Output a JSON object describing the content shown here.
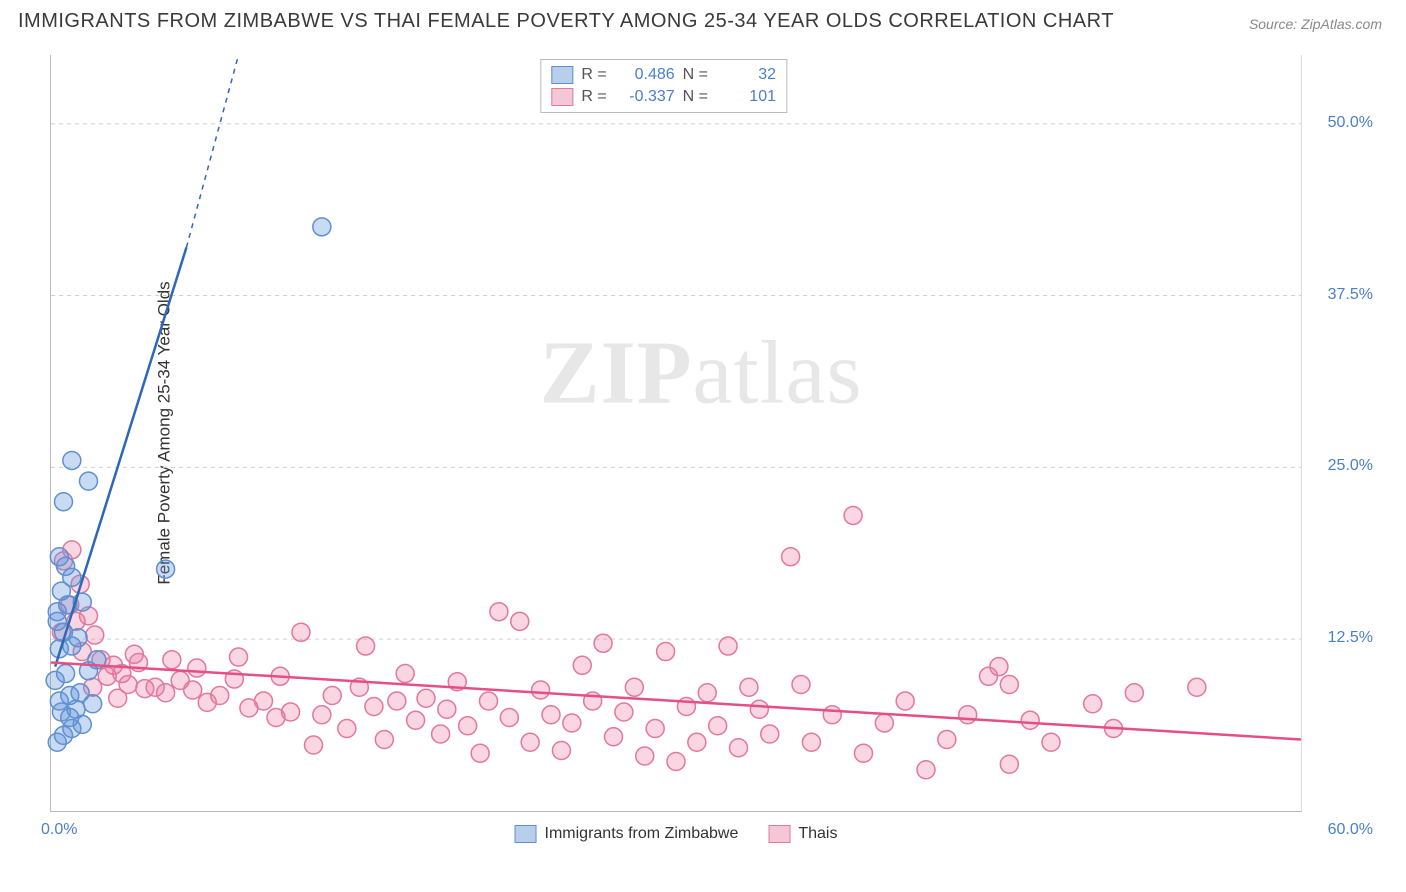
{
  "title": "IMMIGRANTS FROM ZIMBABWE VS THAI FEMALE POVERTY AMONG 25-34 YEAR OLDS CORRELATION CHART",
  "source_label": "Source: ZipAtlas.com",
  "y_axis_label": "Female Poverty Among 25-34 Year Olds",
  "watermark_a": "ZIP",
  "watermark_b": "atlas",
  "chart": {
    "type": "scatter",
    "xlim": [
      0,
      60
    ],
    "ylim": [
      0,
      55
    ],
    "x_min_label": "0.0%",
    "x_max_label": "60.0%",
    "y_ticks": [
      12.5,
      25.0,
      37.5,
      50.0
    ],
    "y_tick_labels": [
      "12.5%",
      "25.0%",
      "37.5%",
      "50.0%"
    ],
    "grid_color": "#d0d0d0",
    "background_color": "#ffffff",
    "marker_radius": 9,
    "marker_stroke_width": 1.5,
    "series": [
      {
        "id": "zimbabwe",
        "label": "Immigrants from Zimbabwe",
        "legend_label": "Immigrants from Zimbabwe",
        "r_label": "R =",
        "r_value": "0.486",
        "n_label": "N =",
        "n_value": "32",
        "fill": "rgba(100,150,220,0.35)",
        "stroke": "#5e90cf",
        "swatch_fill": "#b8cfec",
        "swatch_border": "#5e90cf",
        "regression": {
          "from_x": 0.2,
          "from_y": 10.5,
          "to_x": 9.0,
          "to_y": 55.0,
          "color": "#2f67b8",
          "width": 2.5,
          "dash_from_x": 6.5,
          "dash_from_y": 41.0
        },
        "points": [
          [
            0.3,
            5.0
          ],
          [
            0.6,
            5.5
          ],
          [
            1.0,
            6.0
          ],
          [
            1.5,
            6.3
          ],
          [
            0.5,
            7.2
          ],
          [
            1.2,
            7.4
          ],
          [
            2.0,
            7.8
          ],
          [
            0.4,
            8.0
          ],
          [
            0.9,
            8.4
          ],
          [
            1.4,
            8.6
          ],
          [
            0.2,
            9.5
          ],
          [
            0.7,
            10.0
          ],
          [
            1.8,
            10.2
          ],
          [
            0.4,
            11.8
          ],
          [
            1.0,
            12.0
          ],
          [
            0.6,
            13.0
          ],
          [
            1.3,
            12.6
          ],
          [
            0.3,
            14.5
          ],
          [
            0.8,
            15.0
          ],
          [
            1.5,
            15.2
          ],
          [
            0.5,
            16.0
          ],
          [
            1.0,
            17.0
          ],
          [
            0.7,
            17.8
          ],
          [
            0.4,
            18.5
          ],
          [
            5.5,
            17.6
          ],
          [
            0.6,
            22.5
          ],
          [
            1.8,
            24.0
          ],
          [
            1.0,
            25.5
          ],
          [
            13.0,
            42.5
          ],
          [
            0.3,
            13.8
          ],
          [
            2.2,
            11.0
          ],
          [
            0.9,
            6.8
          ]
        ]
      },
      {
        "id": "thais",
        "label": "Thais",
        "legend_label": "Thais",
        "r_label": "R =",
        "r_value": "-0.337",
        "n_label": "N =",
        "n_value": "101",
        "fill": "rgba(235,120,160,0.30)",
        "stroke": "#e2789f",
        "swatch_fill": "#f5c6d6",
        "swatch_border": "#e2789f",
        "regression": {
          "from_x": 0.0,
          "from_y": 10.8,
          "to_x": 60.0,
          "to_y": 5.2,
          "color": "#e54e86",
          "width": 2.5
        },
        "points": [
          [
            1.0,
            19.0
          ],
          [
            0.6,
            18.2
          ],
          [
            1.4,
            16.5
          ],
          [
            0.9,
            15.0
          ],
          [
            1.2,
            13.8
          ],
          [
            0.5,
            13.0
          ],
          [
            1.8,
            14.2
          ],
          [
            2.1,
            12.8
          ],
          [
            1.5,
            11.6
          ],
          [
            2.4,
            11.0
          ],
          [
            3.0,
            10.6
          ],
          [
            2.7,
            9.8
          ],
          [
            3.4,
            10.0
          ],
          [
            4.0,
            11.4
          ],
          [
            3.7,
            9.2
          ],
          [
            4.5,
            8.9
          ],
          [
            5.0,
            9.0
          ],
          [
            4.2,
            10.8
          ],
          [
            5.5,
            8.6
          ],
          [
            6.2,
            9.5
          ],
          [
            6.8,
            8.8
          ],
          [
            7.0,
            10.4
          ],
          [
            7.5,
            7.9
          ],
          [
            8.1,
            8.4
          ],
          [
            8.8,
            9.6
          ],
          [
            9.0,
            11.2
          ],
          [
            9.5,
            7.5
          ],
          [
            10.2,
            8.0
          ],
          [
            10.8,
            6.8
          ],
          [
            11.0,
            9.8
          ],
          [
            11.5,
            7.2
          ],
          [
            12.0,
            13.0
          ],
          [
            12.6,
            4.8
          ],
          [
            13.0,
            7.0
          ],
          [
            13.5,
            8.4
          ],
          [
            14.2,
            6.0
          ],
          [
            14.8,
            9.0
          ],
          [
            15.1,
            12.0
          ],
          [
            15.5,
            7.6
          ],
          [
            16.0,
            5.2
          ],
          [
            16.6,
            8.0
          ],
          [
            17.0,
            10.0
          ],
          [
            17.5,
            6.6
          ],
          [
            18.0,
            8.2
          ],
          [
            18.7,
            5.6
          ],
          [
            19.0,
            7.4
          ],
          [
            19.5,
            9.4
          ],
          [
            20.0,
            6.2
          ],
          [
            20.6,
            4.2
          ],
          [
            21.0,
            8.0
          ],
          [
            21.5,
            14.5
          ],
          [
            22.0,
            6.8
          ],
          [
            22.5,
            13.8
          ],
          [
            23.0,
            5.0
          ],
          [
            23.5,
            8.8
          ],
          [
            24.0,
            7.0
          ],
          [
            24.5,
            4.4
          ],
          [
            25.0,
            6.4
          ],
          [
            25.5,
            10.6
          ],
          [
            26.0,
            8.0
          ],
          [
            26.5,
            12.2
          ],
          [
            27.0,
            5.4
          ],
          [
            27.5,
            7.2
          ],
          [
            28.0,
            9.0
          ],
          [
            28.5,
            4.0
          ],
          [
            29.0,
            6.0
          ],
          [
            29.5,
            11.6
          ],
          [
            30.0,
            3.6
          ],
          [
            30.5,
            7.6
          ],
          [
            31.0,
            5.0
          ],
          [
            31.5,
            8.6
          ],
          [
            32.0,
            6.2
          ],
          [
            32.5,
            12.0
          ],
          [
            33.0,
            4.6
          ],
          [
            33.5,
            9.0
          ],
          [
            34.0,
            7.4
          ],
          [
            34.5,
            5.6
          ],
          [
            35.5,
            18.5
          ],
          [
            36.5,
            5.0
          ],
          [
            37.5,
            7.0
          ],
          [
            38.5,
            21.5
          ],
          [
            39.0,
            4.2
          ],
          [
            40.0,
            6.4
          ],
          [
            41.0,
            8.0
          ],
          [
            42.0,
            3.0
          ],
          [
            44.0,
            7.0
          ],
          [
            45.0,
            9.8
          ],
          [
            46.0,
            3.4
          ],
          [
            45.5,
            10.5
          ],
          [
            46.0,
            9.2
          ],
          [
            47.0,
            6.6
          ],
          [
            48.0,
            5.0
          ],
          [
            50.0,
            7.8
          ],
          [
            51.0,
            6.0
          ],
          [
            52.0,
            8.6
          ],
          [
            55.0,
            9.0
          ],
          [
            43.0,
            5.2
          ],
          [
            36.0,
            9.2
          ],
          [
            2.0,
            9.0
          ],
          [
            3.2,
            8.2
          ],
          [
            5.8,
            11.0
          ]
        ]
      }
    ]
  }
}
